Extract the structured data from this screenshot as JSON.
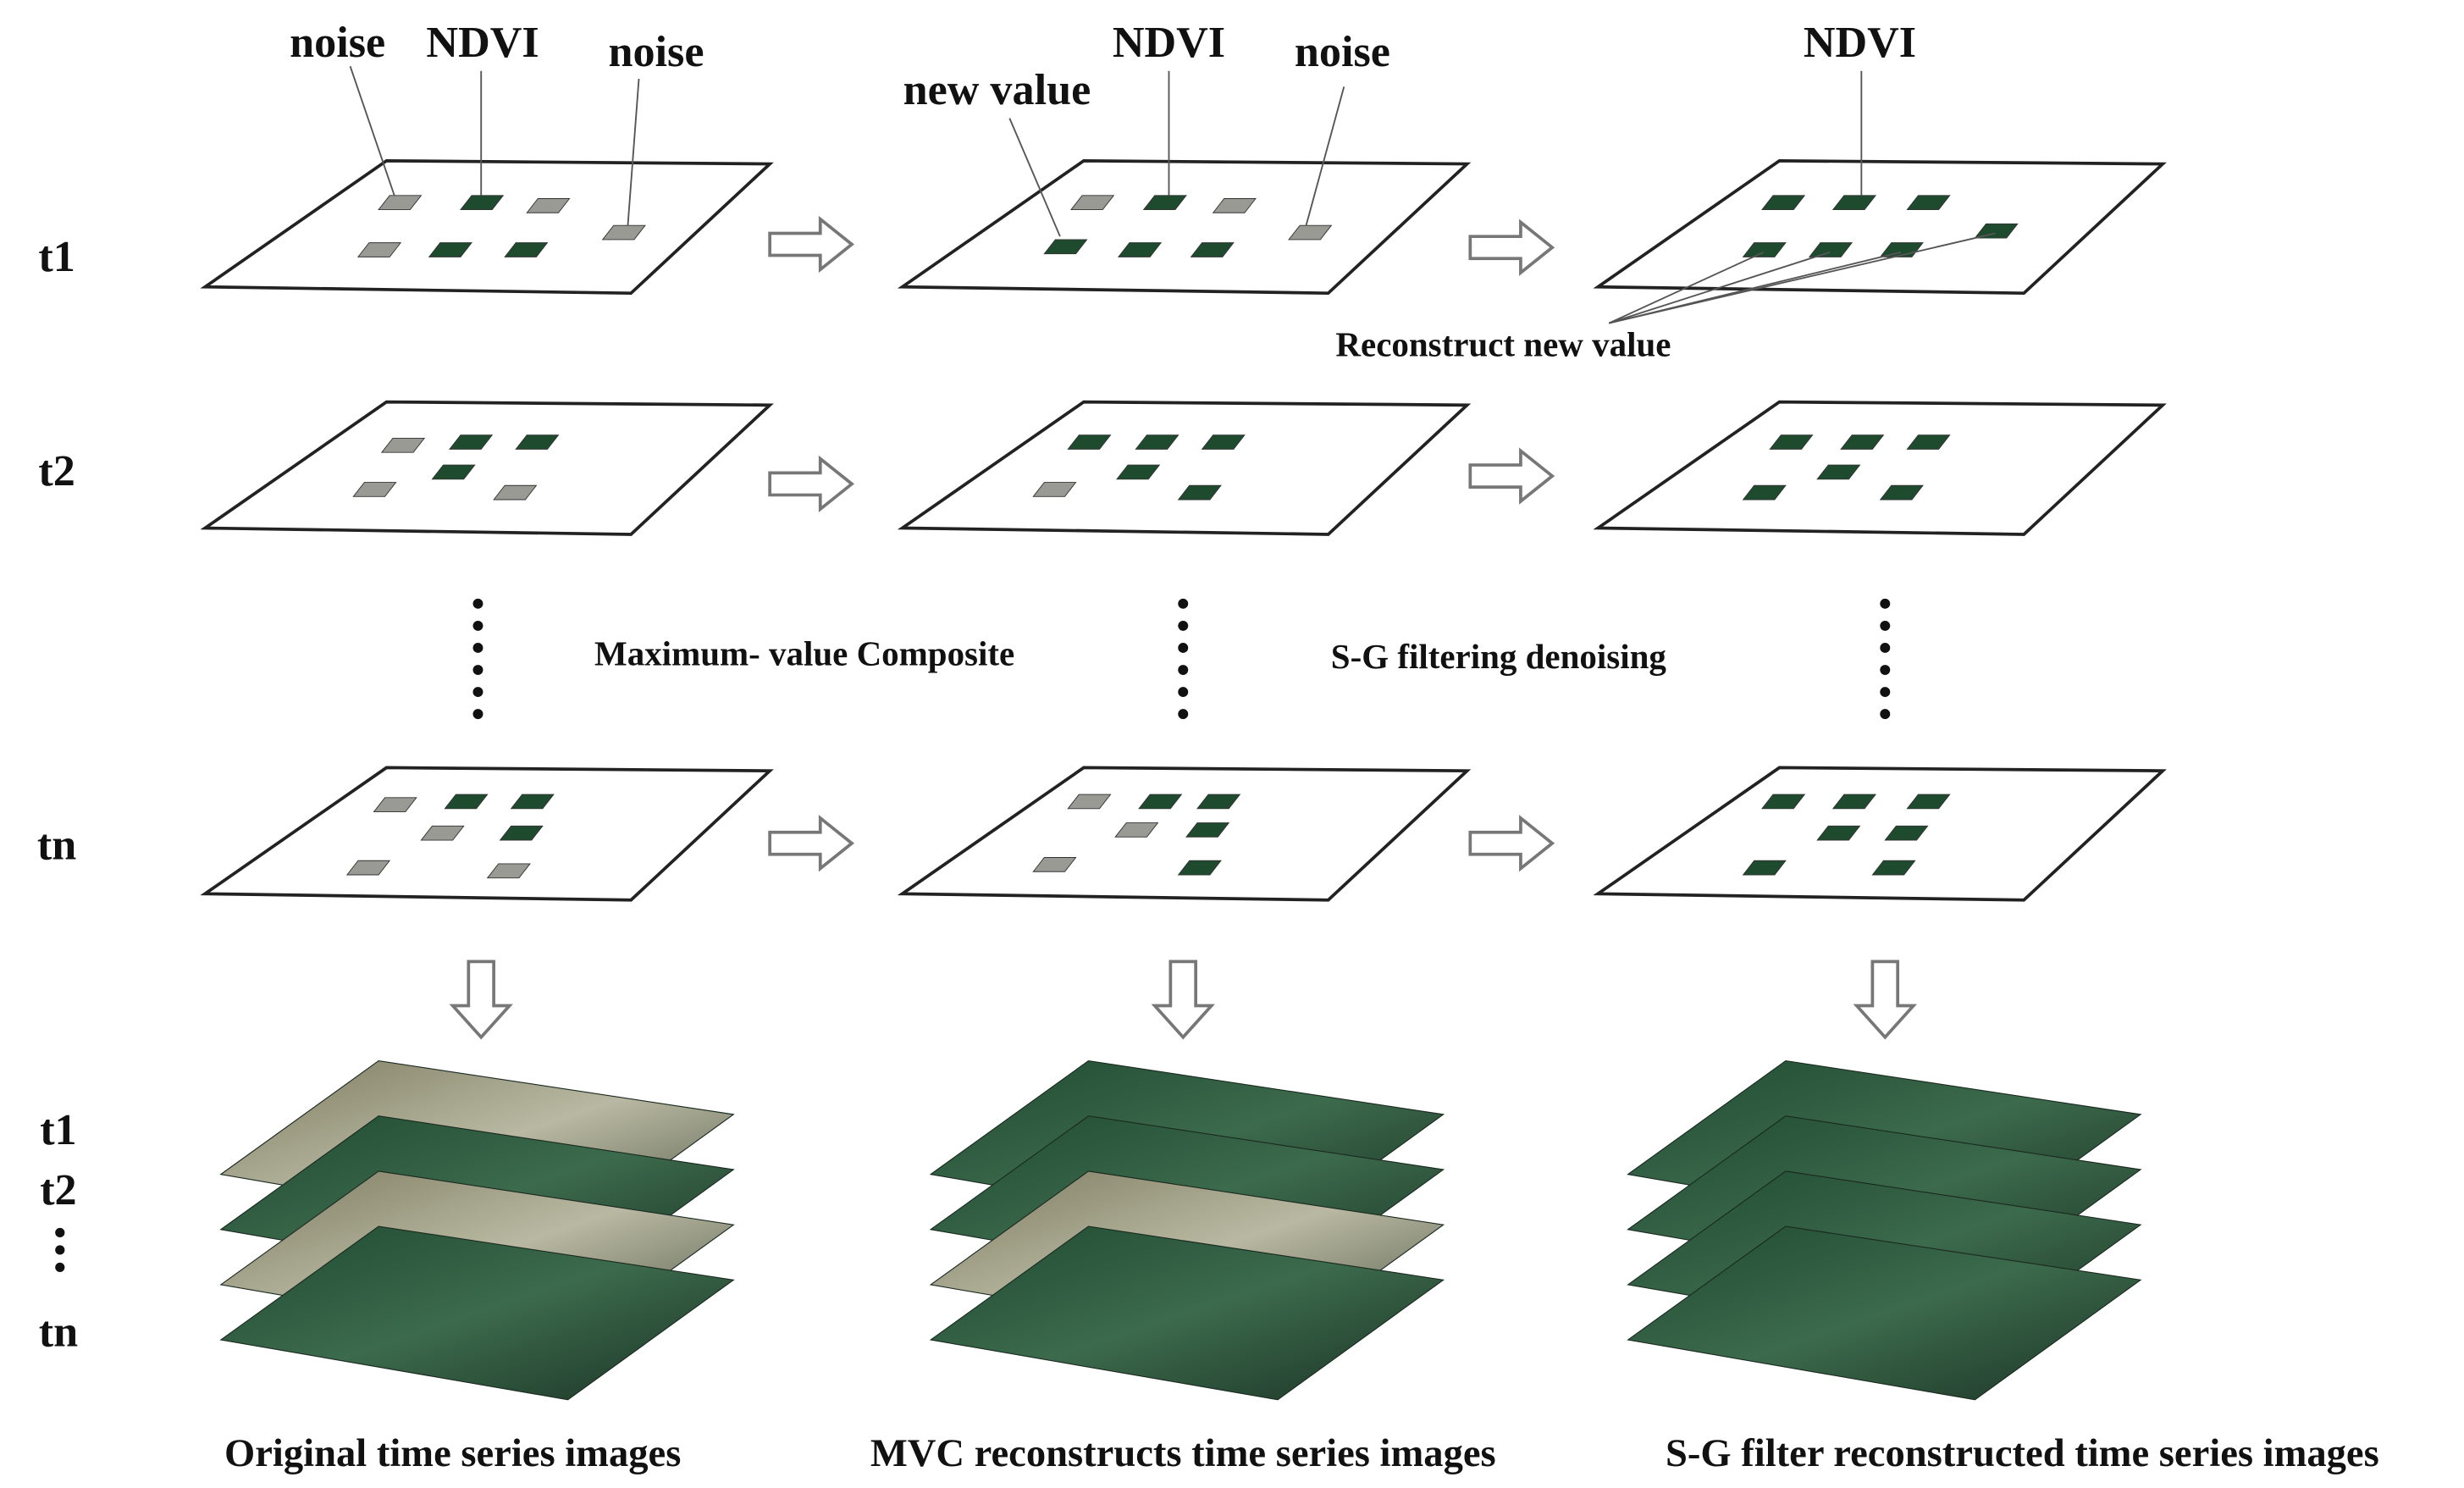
{
  "row_labels": [
    "t1",
    "t2",
    "tn"
  ],
  "stack_labels": [
    "t1",
    "t2",
    "tn"
  ],
  "steps": [
    "Maximum- value Composite",
    "S-G filtering denoising"
  ],
  "captions": [
    "Original  time series images",
    "MVC reconstructs  time series images",
    "S-G filter  reconstructed  time series images"
  ],
  "callouts": {
    "original": [
      "noise",
      "NDVI",
      "noise"
    ],
    "mvc": [
      "new value",
      "NDVI",
      "noise"
    ],
    "sg": [
      "NDVI",
      "Reconstruct new value"
    ]
  }
}
